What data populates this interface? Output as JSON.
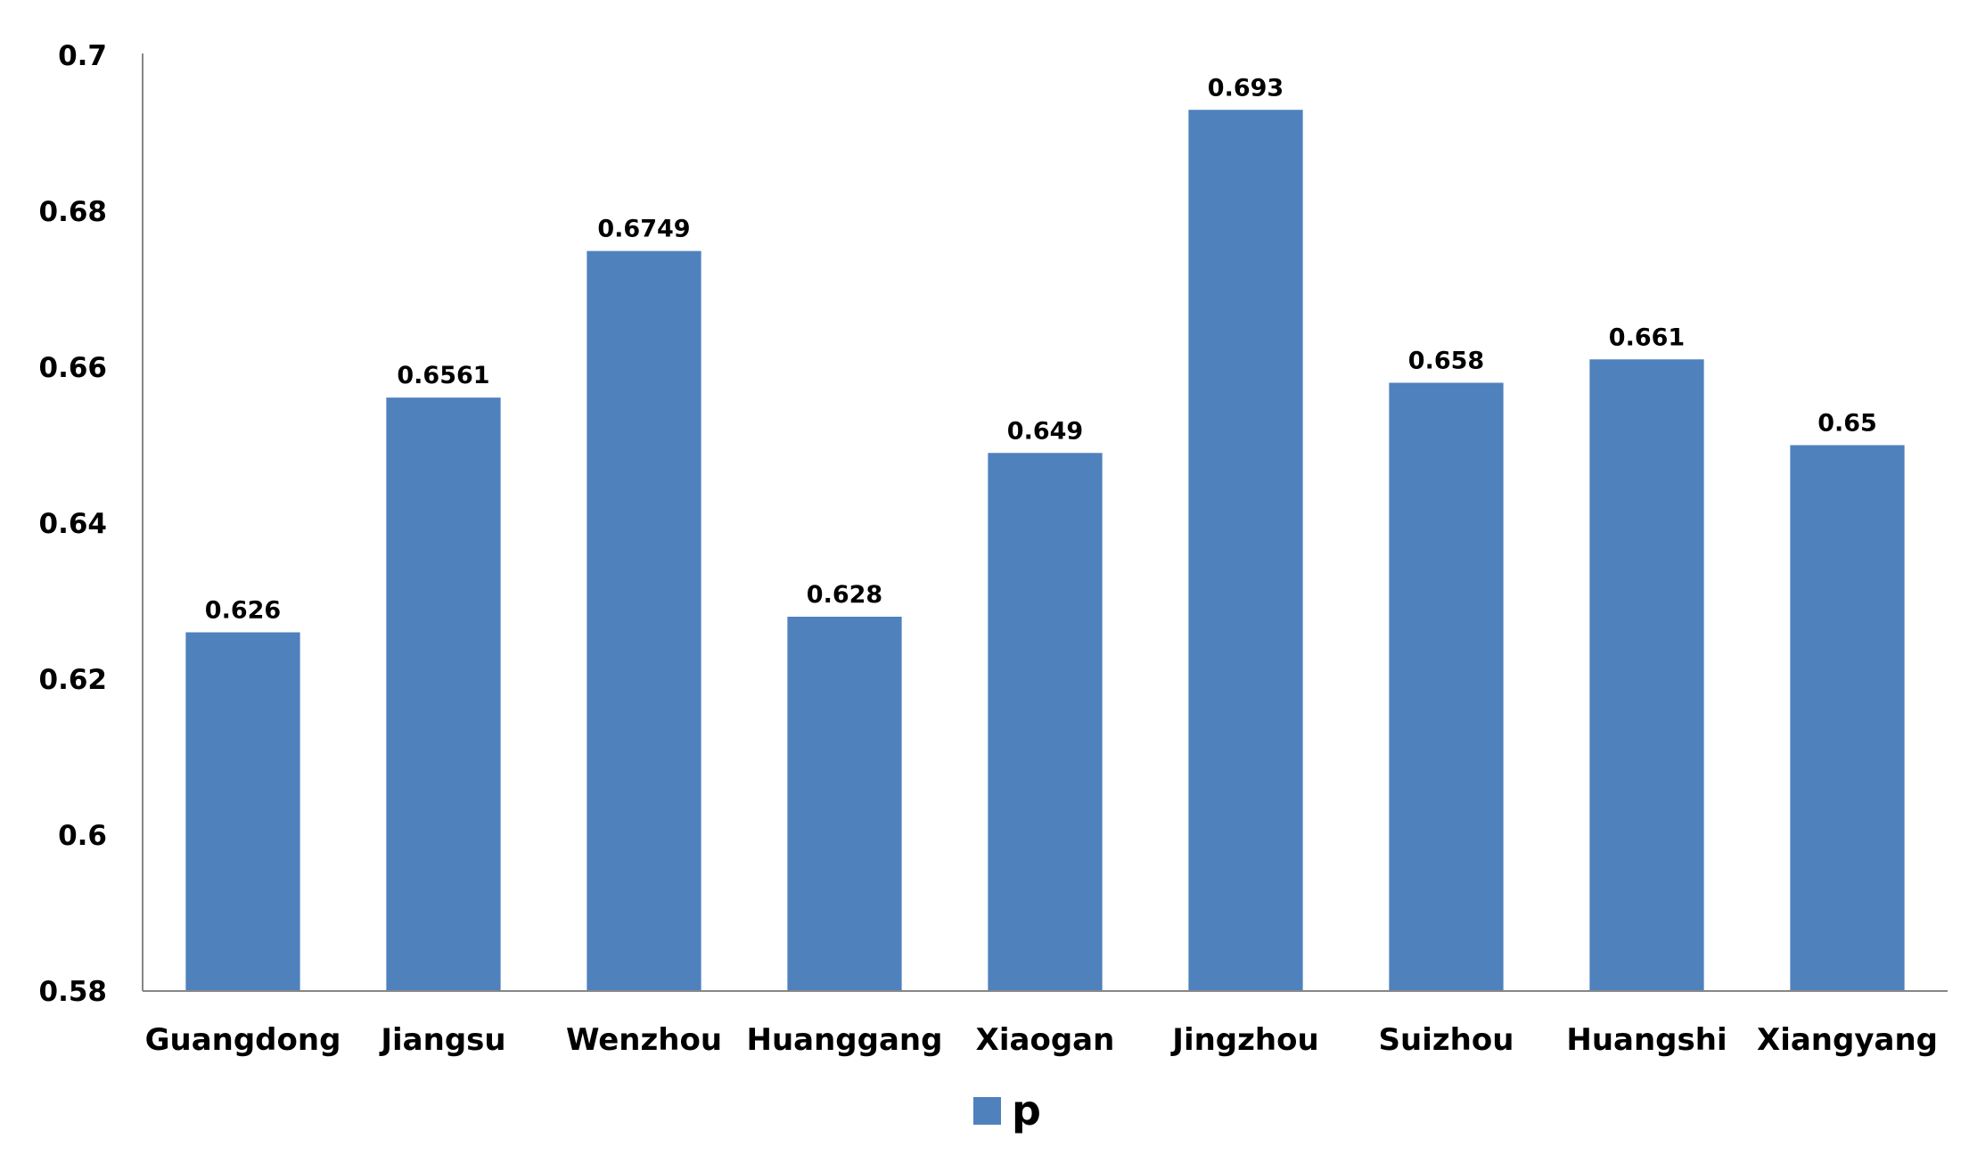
{
  "chart_data": {
    "type": "bar",
    "title": "",
    "xlabel": "",
    "ylabel": "",
    "categories": [
      "Guangdong",
      "Jiangsu",
      "Wenzhou",
      "Huanggang",
      "Xiaogan",
      "Jingzhou",
      "Suizhou",
      "Huangshi",
      "Xiangyang"
    ],
    "series": [
      {
        "name": "p",
        "color": "#4f81bd",
        "values": [
          0.626,
          0.6561,
          0.6749,
          0.628,
          0.649,
          0.693,
          0.658,
          0.661,
          0.65
        ],
        "value_labels": [
          "0.626",
          "0.6561",
          "0.6749",
          "0.628",
          "0.649",
          "0.693",
          "0.658",
          "0.661",
          "0.65"
        ]
      }
    ],
    "ylim": [
      0.58,
      0.7
    ],
    "yticks": [
      0.58,
      0.6,
      0.62,
      0.64,
      0.66,
      0.68,
      0.7
    ],
    "ytick_labels": [
      "0.58",
      "0.6",
      "0.62",
      "0.64",
      "0.66",
      "0.68",
      "0.7"
    ],
    "grid": false,
    "legend": {
      "position": "bottom",
      "entries": [
        "p"
      ]
    },
    "axis_color": "#868686"
  }
}
